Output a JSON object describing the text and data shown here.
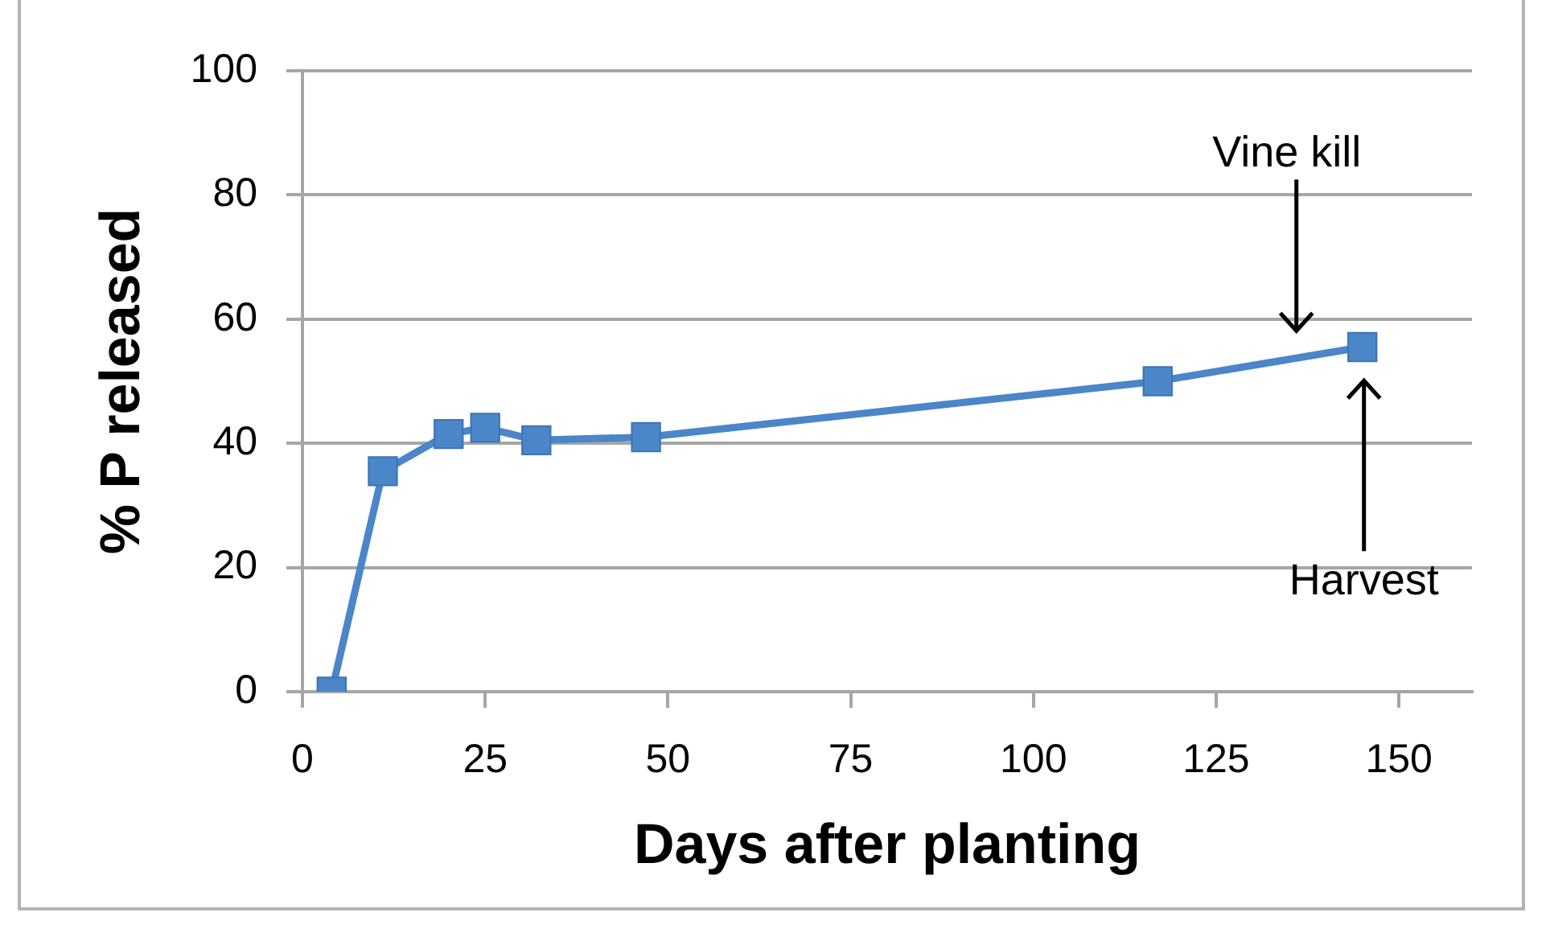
{
  "chart_data": {
    "type": "line",
    "xlabel": "Days after planting",
    "ylabel": "% P released",
    "x": [
      4,
      11,
      20,
      25,
      32,
      47,
      117,
      145
    ],
    "series": [
      {
        "color": "#4a86c8",
        "values": [
          0,
          35.5,
          41.5,
          42.5,
          40.5,
          41,
          50,
          55.5
        ]
      }
    ],
    "xlim": [
      0,
      160
    ],
    "xticks": [
      0,
      25,
      50,
      75,
      100,
      125,
      150
    ],
    "ylim": [
      0,
      100
    ],
    "yticks": [
      0,
      20,
      40,
      60,
      80,
      100
    ],
    "grid": "y",
    "marker": "square",
    "line_style": "solid",
    "annotations": [
      "Vine kill",
      "Harvest"
    ]
  }
}
